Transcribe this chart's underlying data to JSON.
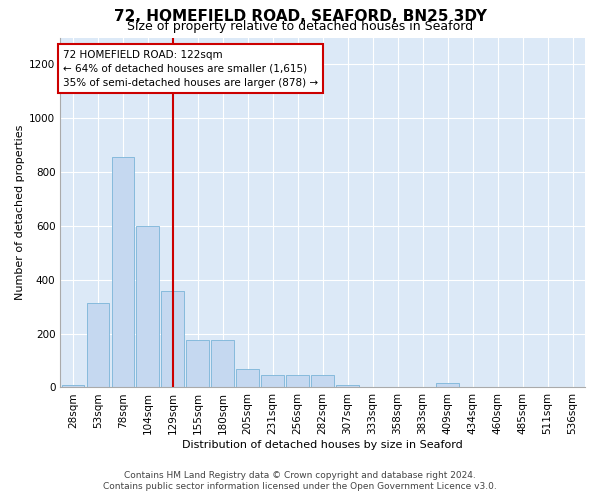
{
  "title_line1": "72, HOMEFIELD ROAD, SEAFORD, BN25 3DY",
  "title_line2": "Size of property relative to detached houses in Seaford",
  "xlabel": "Distribution of detached houses by size in Seaford",
  "ylabel": "Number of detached properties",
  "bar_color": "#c5d8f0",
  "bar_edge_color": "#7ab4d8",
  "annotation_text": "72 HOMEFIELD ROAD: 122sqm\n← 64% of detached houses are smaller (1,615)\n35% of semi-detached houses are larger (878) →",
  "vline_x": 4,
  "vline_color": "#cc0000",
  "categories": [
    "28sqm",
    "53sqm",
    "78sqm",
    "104sqm",
    "129sqm",
    "155sqm",
    "180sqm",
    "205sqm",
    "231sqm",
    "256sqm",
    "282sqm",
    "307sqm",
    "333sqm",
    "358sqm",
    "383sqm",
    "409sqm",
    "434sqm",
    "460sqm",
    "485sqm",
    "511sqm",
    "536sqm"
  ],
  "values": [
    10,
    315,
    855,
    600,
    360,
    175,
    175,
    70,
    45,
    45,
    45,
    10,
    0,
    0,
    0,
    15,
    0,
    0,
    0,
    0,
    0
  ],
  "ylim_max": 1300,
  "yticks": [
    0,
    200,
    400,
    600,
    800,
    1000,
    1200
  ],
  "footnote1": "Contains HM Land Registry data © Crown copyright and database right 2024.",
  "footnote2": "Contains public sector information licensed under the Open Government Licence v3.0.",
  "bg_color": "#dce9f7",
  "title_fontsize": 11,
  "subtitle_fontsize": 9,
  "axis_label_fontsize": 8,
  "tick_fontsize": 7.5,
  "footnote_fontsize": 6.5
}
